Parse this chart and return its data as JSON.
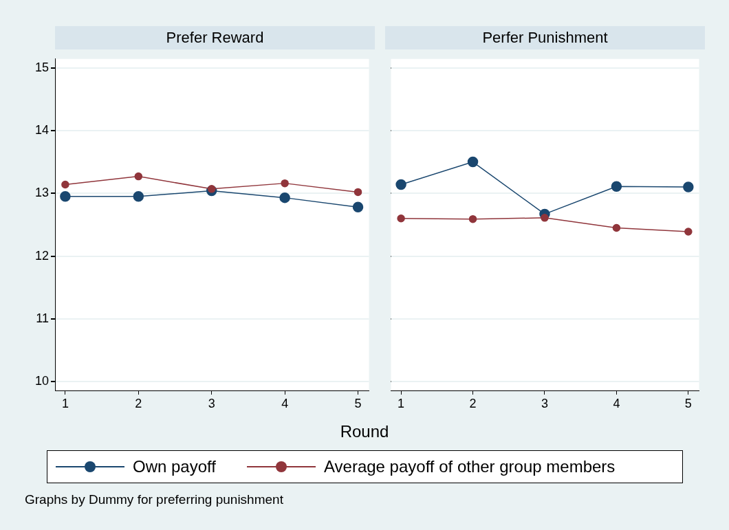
{
  "chart_data": [
    {
      "type": "line",
      "title": "Prefer Reward",
      "xlabel": "Round",
      "x": [
        1,
        2,
        3,
        4,
        5
      ],
      "xlim": [
        0.86,
        5.15
      ],
      "xticks": [
        1,
        2,
        3,
        4,
        5
      ],
      "ylim": [
        9.86,
        15.14
      ],
      "yticks": [
        10,
        11,
        12,
        13,
        14,
        15
      ],
      "grid": "y",
      "marker": "circle",
      "legend": "bottom",
      "annotations": [
        "Graphs by Dummy for preferring punishment"
      ],
      "series": [
        {
          "name": "Own payoff",
          "color": "#1a476f",
          "values": [
            12.95,
            12.95,
            13.04,
            12.93,
            12.78
          ]
        },
        {
          "name": "Average payoff of other group members",
          "color": "#90353b",
          "values": [
            13.14,
            13.27,
            13.07,
            13.16,
            13.02
          ]
        }
      ]
    },
    {
      "type": "line",
      "title": "Perfer Punishment",
      "x": [
        1,
        2,
        3,
        4,
        5
      ],
      "xlim": [
        0.86,
        5.15
      ],
      "xticks": [
        1,
        2,
        3,
        4,
        5
      ],
      "ylim": [
        9.86,
        15.14
      ],
      "yticks": [
        10,
        11,
        12,
        13,
        14,
        15
      ],
      "grid": "y",
      "marker": "circle",
      "tick_labels": "x",
      "series": [
        {
          "color": "#1a476f",
          "values": [
            13.14,
            13.5,
            12.67,
            13.11,
            13.1
          ]
        },
        {
          "color": "#90353b",
          "values": [
            12.6,
            12.59,
            12.61,
            12.45,
            12.39
          ]
        }
      ]
    }
  ]
}
